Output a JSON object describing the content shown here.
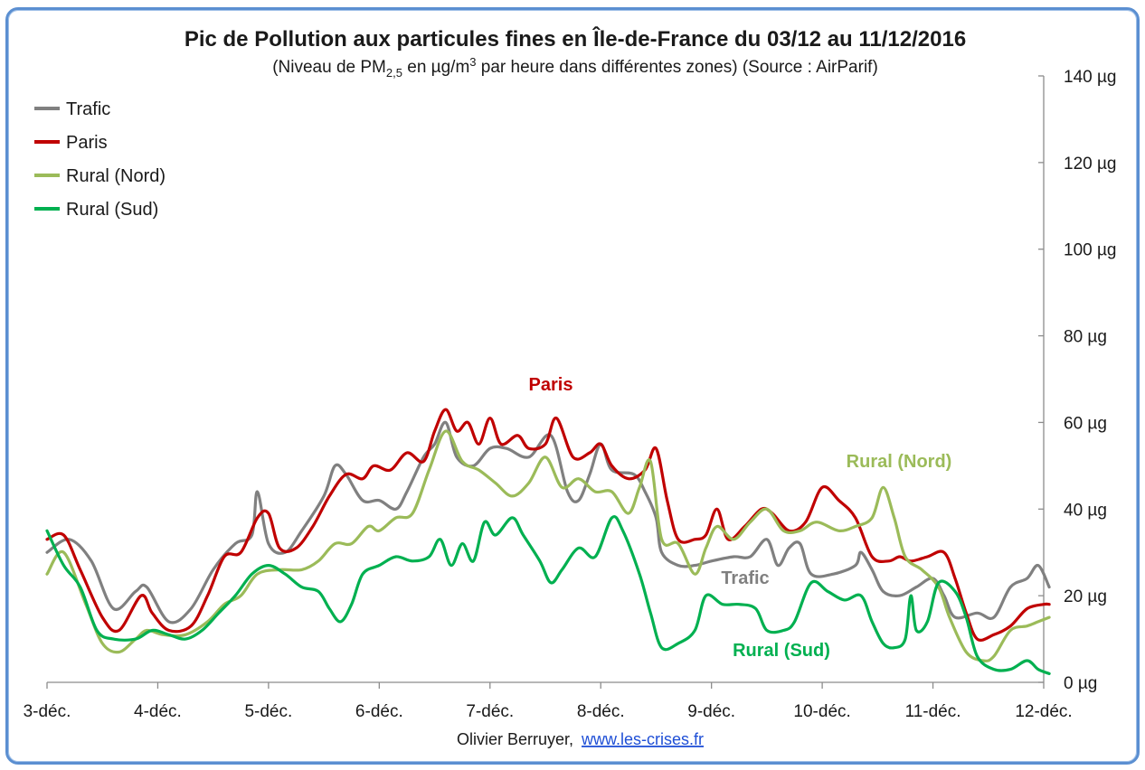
{
  "chart_data": {
    "type": "line",
    "title": "Pic de Pollution aux particules fines en Île-de-France du 03/12 au 11/12/2016",
    "subtitle": {
      "before": "(Niveau de PM",
      "sub": "2,5",
      "middle": " en µg/m",
      "sup": "3",
      "after": " par heure dans différentes zones) (Source : AirParif)"
    },
    "x_categories": [
      "3-déc.",
      "4-déc.",
      "5-déc.",
      "6-déc.",
      "7-déc.",
      "8-déc.",
      "9-déc.",
      "10-déc.",
      "11-déc.",
      "12-déc."
    ],
    "x_range": [
      0,
      9
    ],
    "ylim": [
      0,
      140
    ],
    "y_ticks": [
      {
        "value": 0,
        "label": "0 µg"
      },
      {
        "value": 20,
        "label": "20 µg"
      },
      {
        "value": 40,
        "label": "40 µg"
      },
      {
        "value": 60,
        "label": "60 µg"
      },
      {
        "value": 80,
        "label": "80 µg"
      },
      {
        "value": 100,
        "label": "100 µg"
      },
      {
        "value": 120,
        "label": "120 µg"
      },
      {
        "value": 140,
        "label": "140 µg"
      }
    ],
    "y_axis_side": "right",
    "grid": false,
    "legend_position": "top-left",
    "series": [
      {
        "name": "Trafic",
        "color": "#808080",
        "points": [
          [
            0,
            30
          ],
          [
            0.2,
            33
          ],
          [
            0.4,
            28
          ],
          [
            0.6,
            17
          ],
          [
            0.8,
            21
          ],
          [
            0.9,
            22
          ],
          [
            1.1,
            14
          ],
          [
            1.3,
            17
          ],
          [
            1.5,
            26
          ],
          [
            1.7,
            32
          ],
          [
            1.85,
            34
          ],
          [
            1.9,
            44
          ],
          [
            2.0,
            32
          ],
          [
            2.15,
            30
          ],
          [
            2.3,
            35
          ],
          [
            2.5,
            43
          ],
          [
            2.6,
            50
          ],
          [
            2.7,
            48
          ],
          [
            2.85,
            42
          ],
          [
            3.0,
            42
          ],
          [
            3.15,
            40
          ],
          [
            3.25,
            44
          ],
          [
            3.4,
            52
          ],
          [
            3.5,
            55
          ],
          [
            3.6,
            60
          ],
          [
            3.7,
            52
          ],
          [
            3.85,
            50
          ],
          [
            4.0,
            54
          ],
          [
            4.15,
            54
          ],
          [
            4.35,
            52
          ],
          [
            4.55,
            57
          ],
          [
            4.7,
            44
          ],
          [
            4.8,
            42
          ],
          [
            4.9,
            48
          ],
          [
            5.0,
            55
          ],
          [
            5.1,
            49
          ],
          [
            5.3,
            48
          ],
          [
            5.4,
            44
          ],
          [
            5.5,
            38
          ],
          [
            5.55,
            30
          ],
          [
            5.7,
            27
          ],
          [
            5.85,
            27
          ],
          [
            6.0,
            28
          ],
          [
            6.2,
            29
          ],
          [
            6.35,
            29
          ],
          [
            6.5,
            33
          ],
          [
            6.6,
            27
          ],
          [
            6.7,
            31
          ],
          [
            6.8,
            32
          ],
          [
            6.9,
            25
          ],
          [
            7.1,
            25
          ],
          [
            7.3,
            27
          ],
          [
            7.35,
            30
          ],
          [
            7.45,
            26
          ],
          [
            7.55,
            21
          ],
          [
            7.7,
            20
          ],
          [
            7.85,
            22
          ],
          [
            8.0,
            24
          ],
          [
            8.1,
            20
          ],
          [
            8.2,
            15
          ],
          [
            8.4,
            16
          ],
          [
            8.55,
            15
          ],
          [
            8.7,
            22
          ],
          [
            8.85,
            24
          ],
          [
            8.95,
            27
          ],
          [
            9.05,
            22
          ]
        ]
      },
      {
        "name": "Paris",
        "color": "#c00000",
        "points": [
          [
            0,
            33
          ],
          [
            0.15,
            34
          ],
          [
            0.3,
            26
          ],
          [
            0.5,
            15
          ],
          [
            0.65,
            12
          ],
          [
            0.85,
            20
          ],
          [
            0.95,
            16
          ],
          [
            1.1,
            12
          ],
          [
            1.3,
            13
          ],
          [
            1.45,
            20
          ],
          [
            1.6,
            29
          ],
          [
            1.75,
            30
          ],
          [
            1.9,
            38
          ],
          [
            2.0,
            39
          ],
          [
            2.1,
            31
          ],
          [
            2.25,
            31
          ],
          [
            2.4,
            36
          ],
          [
            2.55,
            43
          ],
          [
            2.7,
            48
          ],
          [
            2.85,
            47
          ],
          [
            2.95,
            50
          ],
          [
            3.1,
            49
          ],
          [
            3.25,
            53
          ],
          [
            3.4,
            51
          ],
          [
            3.5,
            58
          ],
          [
            3.6,
            63
          ],
          [
            3.7,
            58
          ],
          [
            3.8,
            60
          ],
          [
            3.9,
            55
          ],
          [
            4.0,
            61
          ],
          [
            4.1,
            55
          ],
          [
            4.25,
            57
          ],
          [
            4.35,
            54
          ],
          [
            4.5,
            55
          ],
          [
            4.6,
            61
          ],
          [
            4.75,
            52
          ],
          [
            4.9,
            53
          ],
          [
            5.0,
            55
          ],
          [
            5.1,
            50
          ],
          [
            5.25,
            47
          ],
          [
            5.4,
            49
          ],
          [
            5.5,
            54
          ],
          [
            5.6,
            42
          ],
          [
            5.7,
            33
          ],
          [
            5.85,
            33
          ],
          [
            5.95,
            34
          ],
          [
            6.05,
            40
          ],
          [
            6.15,
            33
          ],
          [
            6.3,
            36
          ],
          [
            6.45,
            40
          ],
          [
            6.55,
            39
          ],
          [
            6.7,
            35
          ],
          [
            6.85,
            37
          ],
          [
            7.0,
            45
          ],
          [
            7.15,
            42
          ],
          [
            7.3,
            38
          ],
          [
            7.45,
            29
          ],
          [
            7.6,
            28
          ],
          [
            7.7,
            29
          ],
          [
            7.8,
            28
          ],
          [
            7.95,
            29
          ],
          [
            8.1,
            30
          ],
          [
            8.2,
            24
          ],
          [
            8.3,
            16
          ],
          [
            8.4,
            10
          ],
          [
            8.55,
            11
          ],
          [
            8.7,
            13
          ],
          [
            8.85,
            17
          ],
          [
            9.0,
            18
          ],
          [
            9.05,
            18
          ]
        ]
      },
      {
        "name": "Rural (Nord)",
        "color": "#9bbb59",
        "points": [
          [
            0,
            25
          ],
          [
            0.15,
            30
          ],
          [
            0.35,
            18
          ],
          [
            0.5,
            9
          ],
          [
            0.65,
            7
          ],
          [
            0.8,
            10
          ],
          [
            0.9,
            12
          ],
          [
            1.05,
            11
          ],
          [
            1.25,
            11
          ],
          [
            1.45,
            14
          ],
          [
            1.6,
            18
          ],
          [
            1.75,
            20
          ],
          [
            1.9,
            25
          ],
          [
            2.1,
            26
          ],
          [
            2.3,
            26
          ],
          [
            2.45,
            28
          ],
          [
            2.6,
            32
          ],
          [
            2.75,
            32
          ],
          [
            2.9,
            36
          ],
          [
            3.0,
            35
          ],
          [
            3.15,
            38
          ],
          [
            3.3,
            39
          ],
          [
            3.45,
            49
          ],
          [
            3.6,
            58
          ],
          [
            3.75,
            51
          ],
          [
            3.9,
            49
          ],
          [
            4.05,
            46
          ],
          [
            4.2,
            43
          ],
          [
            4.35,
            46
          ],
          [
            4.5,
            52
          ],
          [
            4.65,
            45
          ],
          [
            4.8,
            47
          ],
          [
            4.95,
            44
          ],
          [
            5.1,
            44
          ],
          [
            5.25,
            39
          ],
          [
            5.35,
            45
          ],
          [
            5.45,
            51
          ],
          [
            5.55,
            33
          ],
          [
            5.7,
            32
          ],
          [
            5.85,
            25
          ],
          [
            5.95,
            31
          ],
          [
            6.05,
            36
          ],
          [
            6.2,
            33
          ],
          [
            6.35,
            37
          ],
          [
            6.5,
            40
          ],
          [
            6.65,
            35
          ],
          [
            6.8,
            35
          ],
          [
            6.95,
            37
          ],
          [
            7.15,
            35
          ],
          [
            7.3,
            36
          ],
          [
            7.45,
            38
          ],
          [
            7.55,
            45
          ],
          [
            7.65,
            38
          ],
          [
            7.75,
            29
          ],
          [
            7.9,
            26
          ],
          [
            8.05,
            22
          ],
          [
            8.15,
            15
          ],
          [
            8.3,
            7
          ],
          [
            8.45,
            5
          ],
          [
            8.55,
            6
          ],
          [
            8.7,
            12
          ],
          [
            8.85,
            13
          ],
          [
            8.95,
            14
          ],
          [
            9.05,
            15
          ]
        ]
      },
      {
        "name": "Rural (Sud)",
        "color": "#00b050",
        "points": [
          [
            0,
            35
          ],
          [
            0.15,
            27
          ],
          [
            0.3,
            22
          ],
          [
            0.45,
            12
          ],
          [
            0.6,
            10
          ],
          [
            0.8,
            10
          ],
          [
            0.95,
            12
          ],
          [
            1.1,
            11
          ],
          [
            1.25,
            10
          ],
          [
            1.4,
            12
          ],
          [
            1.55,
            16
          ],
          [
            1.7,
            20
          ],
          [
            1.85,
            25
          ],
          [
            2.0,
            27
          ],
          [
            2.15,
            25
          ],
          [
            2.3,
            22
          ],
          [
            2.45,
            21
          ],
          [
            2.55,
            17
          ],
          [
            2.65,
            14
          ],
          [
            2.75,
            18
          ],
          [
            2.85,
            25
          ],
          [
            3.0,
            27
          ],
          [
            3.15,
            29
          ],
          [
            3.3,
            28
          ],
          [
            3.45,
            29
          ],
          [
            3.55,
            33
          ],
          [
            3.65,
            27
          ],
          [
            3.75,
            32
          ],
          [
            3.85,
            28
          ],
          [
            3.95,
            37
          ],
          [
            4.05,
            34
          ],
          [
            4.2,
            38
          ],
          [
            4.3,
            34
          ],
          [
            4.45,
            28
          ],
          [
            4.55,
            23
          ],
          [
            4.65,
            26
          ],
          [
            4.8,
            31
          ],
          [
            4.95,
            29
          ],
          [
            5.1,
            38
          ],
          [
            5.2,
            35
          ],
          [
            5.35,
            25
          ],
          [
            5.45,
            16
          ],
          [
            5.55,
            8
          ],
          [
            5.7,
            9
          ],
          [
            5.85,
            12
          ],
          [
            5.95,
            20
          ],
          [
            6.1,
            18
          ],
          [
            6.25,
            18
          ],
          [
            6.4,
            17
          ],
          [
            6.5,
            12
          ],
          [
            6.65,
            12
          ],
          [
            6.75,
            14
          ],
          [
            6.9,
            23
          ],
          [
            7.05,
            21
          ],
          [
            7.2,
            19
          ],
          [
            7.35,
            20
          ],
          [
            7.45,
            14
          ],
          [
            7.55,
            9
          ],
          [
            7.65,
            8
          ],
          [
            7.75,
            10
          ],
          [
            7.8,
            20
          ],
          [
            7.85,
            12
          ],
          [
            7.95,
            14
          ],
          [
            8.05,
            23
          ],
          [
            8.2,
            21
          ],
          [
            8.3,
            15
          ],
          [
            8.4,
            6
          ],
          [
            8.55,
            3
          ],
          [
            8.7,
            3
          ],
          [
            8.85,
            5
          ],
          [
            8.95,
            3
          ],
          [
            9.05,
            2
          ]
        ]
      }
    ],
    "annotations": [
      {
        "text": "Paris",
        "color": "#c00000"
      },
      {
        "text": "Rural (Nord)",
        "color": "#9bbb59"
      },
      {
        "text": "Trafic",
        "color": "#808080"
      },
      {
        "text": "Rural (Sud)",
        "color": "#00b050"
      }
    ]
  },
  "credit": {
    "author": "Olivier Berruyer, ",
    "link": "www.les-crises.fr"
  }
}
